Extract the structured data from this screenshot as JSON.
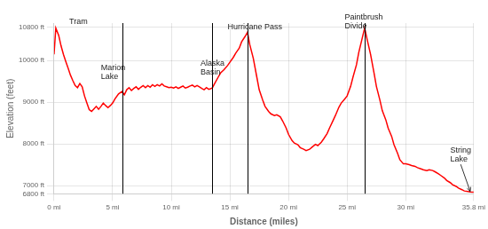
{
  "chart_data": {
    "type": "line",
    "xlabel": "Distance (miles)",
    "ylabel": "Elevation (feet)",
    "color": "red",
    "grid": true,
    "xlim": [
      0,
      35.8
    ],
    "ylim": [
      6800,
      10900
    ],
    "xticks": [
      {
        "value": 0,
        "label": "0 mi"
      },
      {
        "value": 5,
        "label": "5 mi"
      },
      {
        "value": 10,
        "label": "10 mi"
      },
      {
        "value": 15,
        "label": "15 mi"
      },
      {
        "value": 20,
        "label": "20 mi"
      },
      {
        "value": 25,
        "label": "25 mi"
      },
      {
        "value": 30,
        "label": "30 mi"
      },
      {
        "value": 35.8,
        "label": "35.8 mi"
      }
    ],
    "yticks": [
      {
        "value": 6800,
        "label": "6800 ft"
      },
      {
        "value": 7000,
        "label": "7000 ft"
      },
      {
        "value": 8000,
        "label": "8000 ft"
      },
      {
        "value": 9000,
        "label": "9000 ft"
      },
      {
        "value": 10000,
        "label": "10000 ft"
      },
      {
        "value": 10800,
        "label": "10800 ft"
      }
    ],
    "vlines": [
      5.8,
      13.5,
      16.5,
      26.5
    ],
    "annotations": [
      {
        "text": "Tram",
        "x": 1.3,
        "y": 10830
      },
      {
        "text": "Marion\nLake",
        "x": 4.0,
        "y": 9510
      },
      {
        "text": "Alaska\nBasin",
        "x": 12.5,
        "y": 9630
      },
      {
        "text": "Hurricane Pass",
        "x": 14.8,
        "y": 10700
      },
      {
        "text": "Paintbrush\nDivide",
        "x": 24.8,
        "y": 10720
      },
      {
        "text": "String\nLake",
        "x": 33.8,
        "y": 7530,
        "arrow_to": [
          35.5,
          6860
        ]
      }
    ],
    "x": [
      0.0,
      0.15,
      0.4,
      0.6,
      0.8,
      1.0,
      1.2,
      1.4,
      1.6,
      1.8,
      2.0,
      2.2,
      2.4,
      2.6,
      2.8,
      3.0,
      3.2,
      3.4,
      3.6,
      3.8,
      4.0,
      4.2,
      4.4,
      4.6,
      4.8,
      5.0,
      5.2,
      5.5,
      5.8,
      6.0,
      6.2,
      6.4,
      6.6,
      6.8,
      7.0,
      7.2,
      7.4,
      7.6,
      7.8,
      8.0,
      8.2,
      8.4,
      8.6,
      8.8,
      9.0,
      9.2,
      9.4,
      9.6,
      9.8,
      10.0,
      10.2,
      10.4,
      10.6,
      10.8,
      11.0,
      11.2,
      11.4,
      11.6,
      11.8,
      12.0,
      12.2,
      12.4,
      12.6,
      12.8,
      13.0,
      13.2,
      13.5,
      13.7,
      14.0,
      14.2,
      14.5,
      14.8,
      15.0,
      15.3,
      15.5,
      15.8,
      16.0,
      16.3,
      16.5,
      16.7,
      17.0,
      17.3,
      17.5,
      17.8,
      18.0,
      18.3,
      18.5,
      18.8,
      19.0,
      19.3,
      19.5,
      19.8,
      20.0,
      20.3,
      20.5,
      20.8,
      21.0,
      21.3,
      21.5,
      21.8,
      22.0,
      22.3,
      22.5,
      22.8,
      23.0,
      23.3,
      23.5,
      23.8,
      24.0,
      24.3,
      24.5,
      24.8,
      25.0,
      25.3,
      25.5,
      25.8,
      26.0,
      26.3,
      26.5,
      26.7,
      27.0,
      27.3,
      27.5,
      27.8,
      28.0,
      28.3,
      28.5,
      28.8,
      29.0,
      29.3,
      29.5,
      29.8,
      30.0,
      30.3,
      30.5,
      30.8,
      31.0,
      31.3,
      31.5,
      31.8,
      32.0,
      32.3,
      32.5,
      32.8,
      33.0,
      33.3,
      33.5,
      33.8,
      34.0,
      34.3,
      34.5,
      34.8,
      35.0,
      35.3,
      35.5,
      35.8
    ],
    "values": [
      10150,
      10780,
      10600,
      10350,
      10150,
      9980,
      9820,
      9650,
      9520,
      9400,
      9350,
      9450,
      9370,
      9150,
      8980,
      8820,
      8780,
      8840,
      8900,
      8830,
      8900,
      8980,
      8920,
      8870,
      8920,
      8980,
      9080,
      9200,
      9260,
      9180,
      9300,
      9350,
      9280,
      9330,
      9370,
      9310,
      9360,
      9400,
      9350,
      9400,
      9360,
      9420,
      9380,
      9420,
      9390,
      9440,
      9390,
      9370,
      9350,
      9360,
      9340,
      9370,
      9330,
      9360,
      9390,
      9340,
      9360,
      9390,
      9410,
      9370,
      9400,
      9370,
      9330,
      9300,
      9350,
      9310,
      9340,
      9450,
      9600,
      9700,
      9780,
      9880,
      9960,
      10080,
      10180,
      10300,
      10450,
      10580,
      10680,
      10380,
      10050,
      9600,
      9300,
      9050,
      8900,
      8780,
      8720,
      8680,
      8700,
      8650,
      8550,
      8380,
      8230,
      8080,
      8020,
      7980,
      7910,
      7870,
      7840,
      7870,
      7920,
      7990,
      7960,
      8040,
      8120,
      8250,
      8380,
      8560,
      8680,
      8880,
      8980,
      9080,
      9150,
      9380,
      9600,
      9900,
      10200,
      10550,
      10780,
      10520,
      10150,
      9700,
      9380,
      9050,
      8800,
      8580,
      8380,
      8180,
      7980,
      7780,
      7620,
      7520,
      7520,
      7500,
      7480,
      7460,
      7430,
      7400,
      7380,
      7360,
      7380,
      7360,
      7330,
      7280,
      7240,
      7180,
      7120,
      7070,
      7020,
      6980,
      6940,
      6900,
      6870,
      6855,
      6845,
      6840
    ]
  }
}
